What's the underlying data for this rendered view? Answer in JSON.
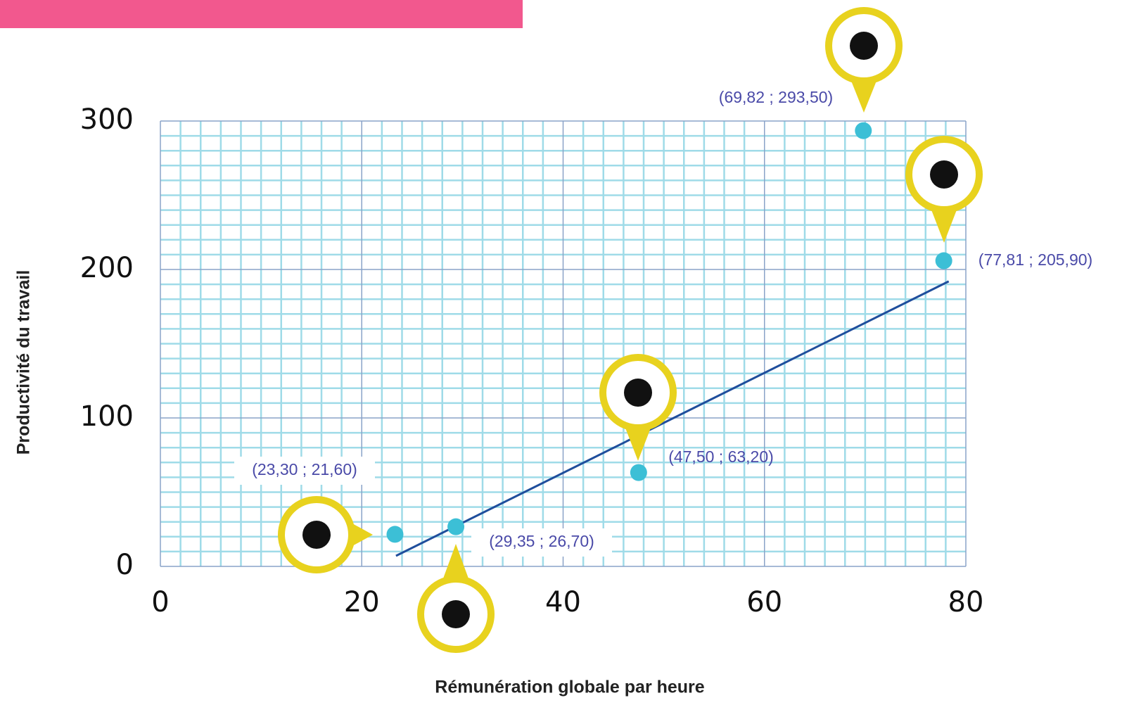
{
  "chart_data": {
    "type": "scatter",
    "x_label": "Rémunération globale par heure",
    "y_label": "Productivité du travail",
    "x": [
      23.3,
      29.35,
      47.5,
      69.82,
      77.81
    ],
    "values": [
      21.6,
      26.7,
      63.2,
      293.5,
      205.9
    ],
    "value_labels": [
      "(23,30 ; 21,60)",
      "(29,35 ; 26,70)",
      "(47,50 ; 63,20)",
      "(69,82 ; 293,50)",
      "(77,81 ; 205,90)"
    ],
    "color": "#3cbfd6",
    "trendline": {
      "x": [
        23.4,
        78.3
      ],
      "y": [
        7.1,
        192
      ],
      "color": "#1f4e9c"
    },
    "xlim": [
      0,
      80
    ],
    "xticks": [
      0,
      20,
      40,
      60,
      80
    ],
    "ylim": [
      0,
      300
    ],
    "yticks": [
      0,
      100,
      200,
      300
    ],
    "grid": true
  }
}
